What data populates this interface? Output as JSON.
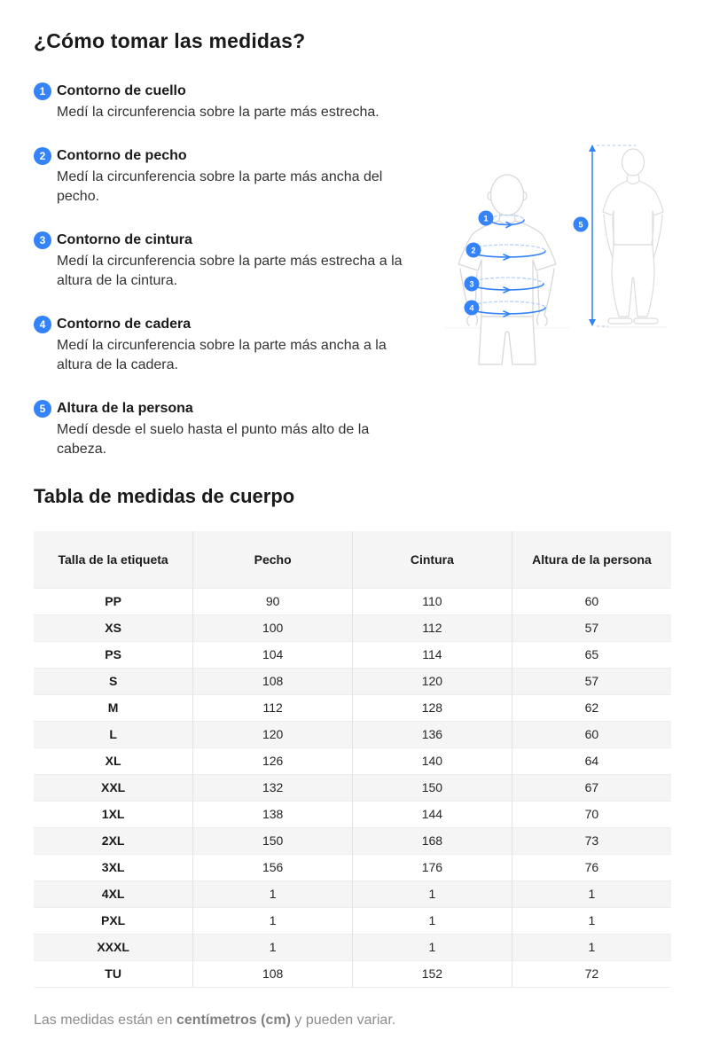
{
  "page": {
    "title": "¿Cómo tomar las medidas?",
    "table_title": "Tabla de medidas de cuerpo",
    "footer": {
      "prefix": "Las medidas están en ",
      "bold": "centímetros (cm)",
      "suffix": " y pueden variar."
    }
  },
  "instructions": [
    {
      "number": "1",
      "title": "Contorno de cuello",
      "description": "Medí la circunferencia sobre la parte más estrecha."
    },
    {
      "number": "2",
      "title": "Contorno de pecho",
      "description": "Medí la circunferencia sobre la parte más ancha del pecho."
    },
    {
      "number": "3",
      "title": "Contorno de cintura",
      "description": "Medí la circunferencia sobre la parte más estrecha a la altura de la cintura."
    },
    {
      "number": "4",
      "title": "Contorno de cadera",
      "description": "Medí la circunferencia sobre la parte más ancha a la altura de la cadera."
    },
    {
      "number": "5",
      "title": "Altura de la persona",
      "description": "Medí desde el suelo hasta el punto más alto de la cabeza."
    }
  ],
  "figure": {
    "badges": [
      "1",
      "2",
      "3",
      "4",
      "5"
    ]
  },
  "size_table": {
    "columns": [
      "Talla de la etiqueta",
      "Pecho",
      "Cintura",
      "Altura de la persona"
    ],
    "rows": [
      [
        "PP",
        "90",
        "110",
        "60"
      ],
      [
        "XS",
        "100",
        "112",
        "57"
      ],
      [
        "PS",
        "104",
        "114",
        "65"
      ],
      [
        "S",
        "108",
        "120",
        "57"
      ],
      [
        "M",
        "112",
        "128",
        "62"
      ],
      [
        "L",
        "120",
        "136",
        "60"
      ],
      [
        "XL",
        "126",
        "140",
        "64"
      ],
      [
        "XXL",
        "132",
        "150",
        "67"
      ],
      [
        "1XL",
        "138",
        "144",
        "70"
      ],
      [
        "2XL",
        "150",
        "168",
        "73"
      ],
      [
        "3XL",
        "156",
        "176",
        "76"
      ],
      [
        "4XL",
        "1",
        "1",
        "1"
      ],
      [
        "PXL",
        "1",
        "1",
        "1"
      ],
      [
        "XXXL",
        "1",
        "1",
        "1"
      ],
      [
        "TU",
        "108",
        "152",
        "72"
      ]
    ]
  },
  "colors": {
    "accent_blue": "#3483fa",
    "light_blue": "#b3d0fb",
    "figure_outline": "#d8d8d8",
    "table_header_bg": "#f5f5f5",
    "row_alt_bg": "#f5f5f5"
  }
}
